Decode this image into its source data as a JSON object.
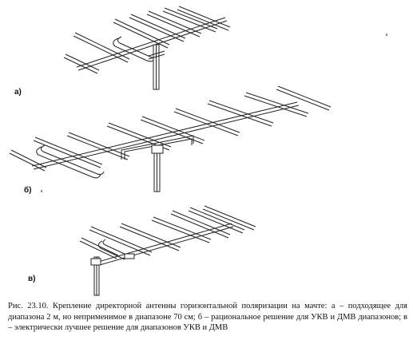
{
  "figure": {
    "label_a": "а)",
    "label_b": "б)",
    "label_v": "в)",
    "caption": "Рис. 23.10. Крепление директорной антенны горизонтальной поляризации на мачте: а – подходящее для диапазона 2 м, но неприменимое в диапазоне 70 см; б – рациональное решение для УКВ и ДМВ диапазонов; в – электрически лучшее решение для диапазонов УКВ и ДМВ"
  }
}
